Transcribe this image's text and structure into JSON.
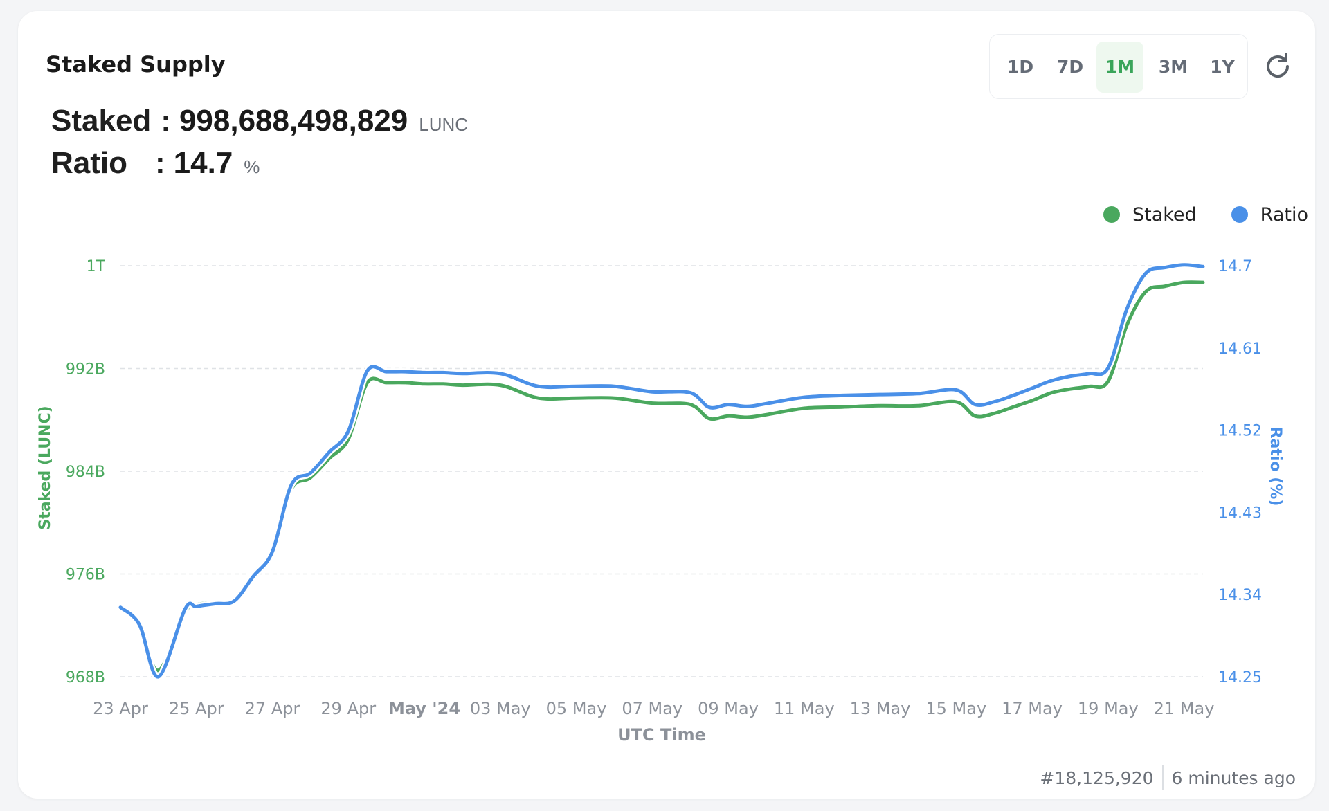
{
  "card": {
    "title": "Staked Supply"
  },
  "periods": [
    "1D",
    "7D",
    "1M",
    "3M",
    "1Y"
  ],
  "active_period": "1M",
  "stats": {
    "staked_label": "Staked",
    "staked_value": "998,688,498,829",
    "staked_unit": "LUNC",
    "ratio_label": "Ratio",
    "ratio_value": "14.7",
    "ratio_unit": "%",
    "colon": ":"
  },
  "footer": {
    "block": "#18,125,920",
    "updated": "6 minutes ago"
  },
  "colors": {
    "staked": "#4aa85e",
    "ratio": "#4a90e8",
    "grid": "#dfe2e6",
    "tick": "#8c9199"
  },
  "chart_data": {
    "type": "line",
    "xlabel": "UTC Time",
    "ylabel_left": "Staked (LUNC)",
    "ylabel_right": "Ratio (%)",
    "legend": [
      "Staked",
      "Ratio"
    ],
    "legend_position": "top-right",
    "x_ticks": [
      "23 Apr",
      "25 Apr",
      "27 Apr",
      "29 Apr",
      "May '24",
      "03 May",
      "05 May",
      "07 May",
      "09 May",
      "11 May",
      "13 May",
      "15 May",
      "17 May",
      "19 May",
      "21 May"
    ],
    "y_left_ticks": [
      {
        "label": "968B",
        "value": 968
      },
      {
        "label": "976B",
        "value": 976
      },
      {
        "label": "984B",
        "value": 984
      },
      {
        "label": "992B",
        "value": 992
      },
      {
        "label": "1T",
        "value": 1000
      }
    ],
    "y_right_ticks": [
      {
        "label": "14.25",
        "value": 14.25
      },
      {
        "label": "14.34",
        "value": 14.34
      },
      {
        "label": "14.43",
        "value": 14.43
      },
      {
        "label": "14.52",
        "value": 14.52
      },
      {
        "label": "14.61",
        "value": 14.61
      },
      {
        "label": "14.7",
        "value": 14.7
      }
    ],
    "y_left_range": [
      968,
      1000
    ],
    "y_right_range": [
      14.25,
      14.7
    ],
    "x_range": [
      0,
      28.5
    ],
    "grid": true,
    "series": [
      {
        "name": "Staked",
        "unit": "B LUNC",
        "x": [
          0,
          0.5,
          1,
          1.7,
          2,
          2.5,
          3,
          3.5,
          4,
          4.5,
          5,
          5.5,
          6,
          6.5,
          7,
          7.5,
          8,
          8.5,
          9,
          10,
          11,
          12,
          13,
          14,
          15,
          15.5,
          16,
          16.5,
          17,
          18,
          19,
          20,
          21,
          22,
          22.5,
          23,
          23.5,
          24,
          24.5,
          25,
          25.5,
          26,
          26.5,
          27,
          27.5,
          28,
          28.5
        ],
        "values": [
          973.5,
          972.0,
          968.5,
          973.0,
          973.6,
          973.8,
          974.0,
          976.0,
          977.8,
          982.6,
          983.5,
          985.0,
          986.5,
          990.9,
          990.9,
          990.9,
          990.8,
          990.8,
          990.7,
          990.7,
          989.7,
          989.7,
          989.7,
          989.3,
          989.2,
          988.1,
          988.3,
          988.2,
          988.4,
          988.9,
          989.0,
          989.1,
          989.1,
          989.4,
          988.3,
          988.5,
          989.0,
          989.5,
          990.1,
          990.4,
          990.6,
          991.0,
          995.4,
          998.0,
          998.4,
          998.7,
          998.7
        ]
      },
      {
        "name": "Ratio",
        "unit": "%",
        "x": [
          0,
          0.5,
          1,
          1.7,
          2,
          2.5,
          3,
          3.5,
          4,
          4.5,
          5,
          5.5,
          6,
          6.5,
          7,
          7.5,
          8,
          8.5,
          9,
          10,
          11,
          12,
          13,
          14,
          15,
          15.5,
          16,
          16.5,
          17,
          18,
          19,
          20,
          21,
          22,
          22.5,
          23,
          23.5,
          24,
          24.5,
          25,
          25.5,
          26,
          26.5,
          27,
          27.5,
          28,
          28.5
        ],
        "values": [
          14.326,
          14.307,
          14.25,
          14.324,
          14.327,
          14.33,
          14.333,
          14.36,
          14.387,
          14.46,
          14.473,
          14.496,
          14.519,
          14.585,
          14.584,
          14.584,
          14.583,
          14.583,
          14.582,
          14.582,
          14.568,
          14.568,
          14.568,
          14.562,
          14.561,
          14.545,
          14.548,
          14.546,
          14.549,
          14.556,
          14.558,
          14.559,
          14.56,
          14.564,
          14.548,
          14.551,
          14.558,
          14.566,
          14.574,
          14.579,
          14.582,
          14.588,
          14.653,
          14.692,
          14.698,
          14.701,
          14.699
        ]
      }
    ]
  }
}
